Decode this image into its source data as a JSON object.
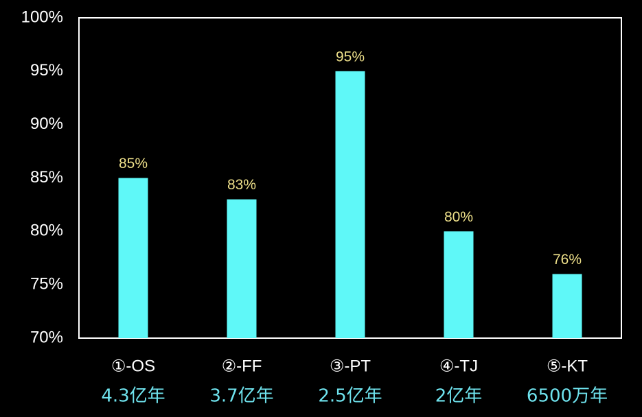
{
  "chart_data": {
    "type": "bar",
    "categories": [
      "①-OS",
      "②-FF",
      "③-PT",
      "④-TJ",
      "⑤-KT"
    ],
    "subcategories": [
      "4.3亿年",
      "3.7亿年",
      "2.5亿年",
      "2亿年",
      "6500万年"
    ],
    "values": [
      85,
      83,
      95,
      80,
      76
    ],
    "value_labels": [
      "85%",
      "83%",
      "95%",
      "80%",
      "76%"
    ],
    "color": "#5ff8f8",
    "ylim": [
      70,
      100
    ],
    "yticks": [
      {
        "value": 70,
        "label": "70%"
      },
      {
        "value": 75,
        "label": "75%"
      },
      {
        "value": 80,
        "label": "80%"
      },
      {
        "value": 85,
        "label": "85%"
      },
      {
        "value": 90,
        "label": "90%"
      },
      {
        "value": 95,
        "label": "95%"
      },
      {
        "value": 100,
        "label": "100%"
      }
    ],
    "grid": false
  }
}
